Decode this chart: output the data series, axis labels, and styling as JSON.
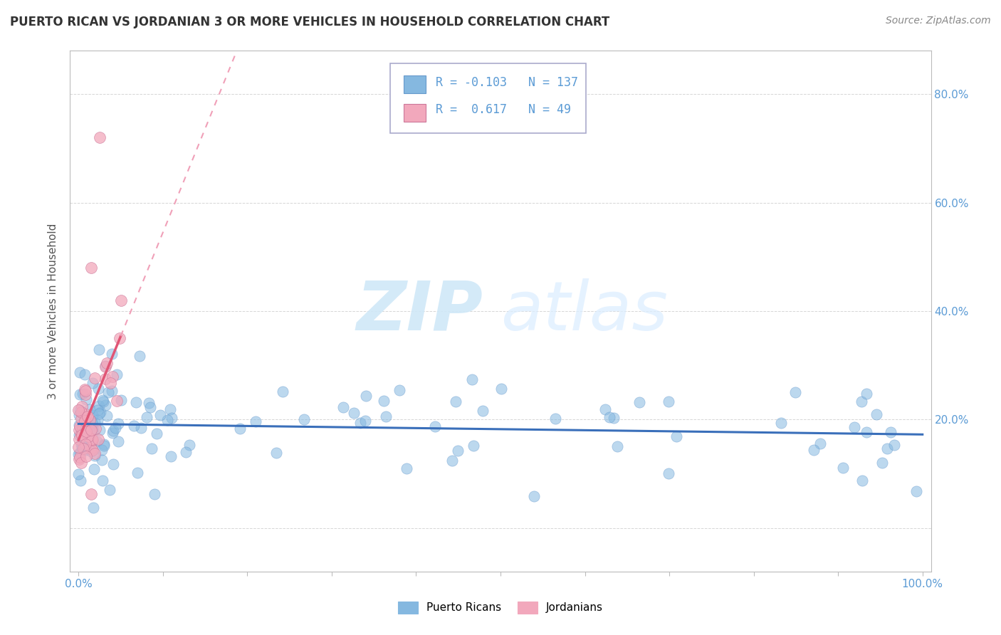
{
  "title": "PUERTO RICAN VS JORDANIAN 3 OR MORE VEHICLES IN HOUSEHOLD CORRELATION CHART",
  "source": "Source: ZipAtlas.com",
  "ylabel": "3 or more Vehicles in Household",
  "legend_pr": {
    "R": -0.103,
    "N": 137
  },
  "legend_jo": {
    "R": 0.617,
    "N": 49
  },
  "pr_color": "#85b8e0",
  "jo_color": "#f2a8bc",
  "pr_line_color": "#3a6fba",
  "jo_line_color": "#e05575",
  "jo_line_dash_color": "#f0a0b8",
  "background_color": "#ffffff",
  "grid_color": "#cccccc",
  "title_color": "#333333",
  "axis_color": "#5b9bd5",
  "ylabel_color": "#555555",
  "watermark_zip_color": "#d0e8f8",
  "watermark_atlas_color": "#ddeeff",
  "xlim": [
    0,
    100
  ],
  "ylim": [
    -8,
    88
  ],
  "yticks": [
    0,
    20,
    40,
    60,
    80
  ],
  "ytick_labels": [
    "",
    "20.0%",
    "40.0%",
    "60.0%",
    "80.0%"
  ],
  "xtick_labels_show": [
    "0.0%",
    "100.0%"
  ],
  "legend_box_color": "#f0f0ff",
  "legend_box_edge": "#aaaacc"
}
